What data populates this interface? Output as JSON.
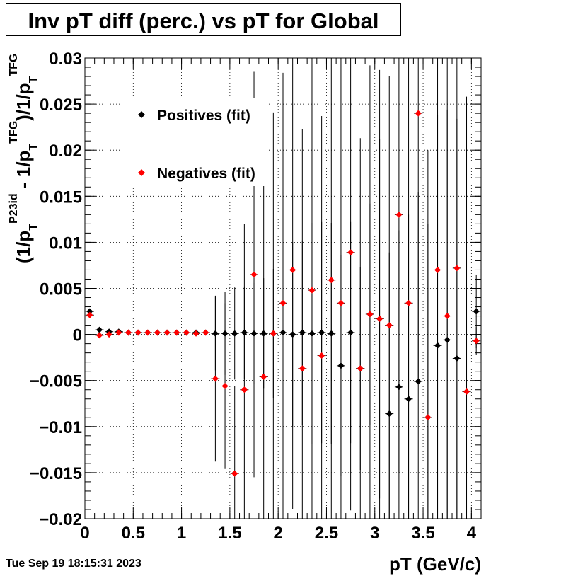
{
  "title": "Inv pT diff (perc.) vs pT for Global",
  "timestamp": "Tue Sep 19 18:15:31 2023",
  "colors": {
    "positives": "#000000",
    "negatives": "#ff0000"
  },
  "chart_data": {
    "type": "scatter",
    "title": "Inv pT diff (perc.) vs pT for Global",
    "xlabel": "pT (GeV/c)",
    "ylabel_parts": {
      "lead": "(1/p",
      "sub1": "T",
      "sup1": "P23id",
      "mid": " - 1/p",
      "sub2": "T",
      "sup2": "TFG",
      "tail": ")/1/p",
      "sub3": "T",
      "sup3": "TFG"
    },
    "xlim": [
      0,
      4.1
    ],
    "ylim": [
      -0.02,
      0.03
    ],
    "x_ticks": [
      0,
      0.5,
      1,
      1.5,
      2,
      2.5,
      3,
      3.5,
      4
    ],
    "x_tick_labels": [
      "0",
      "0.5",
      "1",
      "1.5",
      "2",
      "2.5",
      "3",
      "3.5",
      "4"
    ],
    "y_ticks": [
      -0.02,
      -0.015,
      -0.01,
      -0.005,
      0,
      0.005,
      0.01,
      0.015,
      0.02,
      0.025,
      0.03
    ],
    "y_tick_labels": [
      "−0.02",
      "−0.015",
      "−0.01",
      "−0.005",
      "0",
      "0.005",
      "0.01",
      "0.015",
      "0.02",
      "0.025",
      "0.03"
    ],
    "grid": true,
    "legend_position": "top-left inside",
    "series": [
      {
        "name": "Positives (fit)",
        "color": "#000000",
        "x": [
          0.05,
          0.15,
          0.25,
          0.35,
          0.45,
          0.55,
          0.65,
          0.75,
          0.85,
          0.95,
          1.05,
          1.15,
          1.25,
          1.35,
          1.45,
          1.55,
          1.65,
          1.75,
          1.85,
          1.95,
          2.05,
          2.15,
          2.25,
          2.35,
          2.45,
          2.55,
          2.65,
          2.75,
          2.85,
          2.95,
          3.05,
          3.15,
          3.25,
          3.35,
          3.45,
          3.55,
          3.65,
          3.75,
          3.85,
          3.95,
          4.05
        ],
        "y": [
          0.0025,
          0.0005,
          0.0003,
          0.0003,
          0.0002,
          0.0002,
          0.0002,
          0.0002,
          0.0002,
          0.0002,
          0.0002,
          0.0002,
          0.0002,
          0.0001,
          0.0001,
          0.0001,
          0.0002,
          0.0001,
          0.0001,
          0.0001,
          0.0002,
          0.0,
          0.0002,
          0.0001,
          0.0002,
          0.0001,
          -0.0034,
          0.0002,
          -0.0037,
          0.0022,
          0.0017,
          -0.0086,
          -0.0057,
          -0.007,
          -0.0051,
          -0.009,
          -0.0012,
          -0.0006,
          -0.0026,
          -0.0062,
          0.0025
        ],
        "err": [
          0.0003,
          0.0001,
          0.0001,
          0.0001,
          0.0001,
          0.0001,
          0.0001,
          0.0001,
          0.0001,
          0.0001,
          0.0001,
          0.0001,
          0.0002,
          0.004,
          0.0045,
          0.005,
          0.005,
          0.0055,
          0.006,
          0.007,
          0.009,
          0.01,
          0.01,
          0.012,
          0.012,
          0.012,
          0.012,
          0.012,
          0.011,
          0.012,
          0.0195,
          0.0175,
          0.017,
          0.02,
          0.0205,
          0.021,
          0.025,
          0.025,
          0.026,
          0.031,
          0.004
        ]
      },
      {
        "name": "Negatives (fit)",
        "color": "#ff0000",
        "x": [
          0.05,
          0.15,
          0.25,
          0.35,
          0.45,
          0.55,
          0.65,
          0.75,
          0.85,
          0.95,
          1.05,
          1.15,
          1.25,
          1.35,
          1.45,
          1.55,
          1.65,
          1.75,
          1.85,
          1.95,
          2.05,
          2.15,
          2.25,
          2.35,
          2.45,
          2.55,
          2.65,
          2.75,
          2.85,
          2.95,
          3.05,
          3.15,
          3.25,
          3.35,
          3.45,
          3.55,
          3.65,
          3.75,
          3.85,
          3.95,
          4.05
        ],
        "y": [
          0.0021,
          -0.0001,
          0.0,
          0.0002,
          0.0002,
          0.0002,
          0.0002,
          0.0002,
          0.0002,
          0.0002,
          0.0002,
          0.0001,
          0.0002,
          -0.0048,
          -0.0056,
          -0.0151,
          -0.006,
          0.0065,
          -0.0046,
          0.0001,
          0.0034,
          0.007,
          -0.0037,
          0.0048,
          -0.0023,
          0.0059,
          0.0034,
          0.0089,
          -0.0037,
          0.0022,
          0.0017,
          0.001,
          0.013,
          0.0034,
          0.024,
          -0.009,
          0.007,
          0.002,
          0.0072,
          -0.0062,
          -0.0007
        ],
        "err": [
          0.0003,
          0.0001,
          0.0001,
          0.0001,
          0.0001,
          0.0001,
          0.0001,
          0.0001,
          0.0001,
          0.0001,
          0.0001,
          0.0001,
          0.0002,
          0.009,
          0.009,
          0.0095,
          0.018,
          0.022,
          0.022,
          0.024,
          0.025,
          0.026,
          0.026,
          0.026,
          0.026,
          0.026,
          0.027,
          0.028,
          0.025,
          0.027,
          0.027,
          0.027,
          0.028,
          0.028,
          0.029,
          0.029,
          0.03,
          0.03,
          0.03,
          0.032,
          0.0015
        ]
      }
    ]
  }
}
